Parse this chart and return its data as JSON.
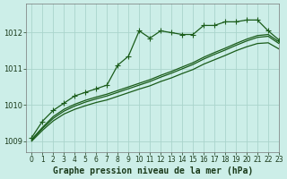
{
  "title": "Graphe pression niveau de la mer (hPa)",
  "bg_color": "#cceee8",
  "grid_color": "#aad4cc",
  "line_color": "#1a5c1a",
  "xlim": [
    -0.5,
    23
  ],
  "ylim": [
    1008.7,
    1012.8
  ],
  "yticks": [
    1009,
    1010,
    1011,
    1012
  ],
  "xticks": [
    0,
    1,
    2,
    3,
    4,
    5,
    6,
    7,
    8,
    9,
    10,
    11,
    12,
    13,
    14,
    15,
    16,
    17,
    18,
    19,
    20,
    21,
    22,
    23
  ],
  "series": [
    {
      "x": [
        0,
        1,
        2,
        3,
        4,
        5,
        6,
        7,
        8,
        9,
        10,
        11,
        12,
        13,
        14,
        15,
        16,
        17,
        18,
        19,
        20,
        21,
        22,
        23
      ],
      "y": [
        1009.1,
        1009.55,
        1009.85,
        1010.05,
        1010.25,
        1010.35,
        1010.45,
        1010.55,
        1011.1,
        1011.35,
        1012.05,
        1011.85,
        1012.05,
        1012.0,
        1011.95,
        1011.95,
        1012.2,
        1012.2,
        1012.3,
        1012.3,
        1012.35,
        1012.35,
        1012.05,
        1011.8
      ],
      "marker": "+",
      "ms": 4,
      "lw": 0.9
    },
    {
      "x": [
        0,
        1,
        2,
        3,
        4,
        5,
        6,
        7,
        8,
        9,
        10,
        11,
        12,
        13,
        14,
        15,
        16,
        17,
        18,
        19,
        20,
        21,
        22,
        23
      ],
      "y": [
        1009.05,
        1009.38,
        1009.68,
        1009.88,
        1010.02,
        1010.13,
        1010.22,
        1010.3,
        1010.4,
        1010.5,
        1010.6,
        1010.7,
        1010.82,
        1010.93,
        1011.05,
        1011.17,
        1011.32,
        1011.45,
        1011.57,
        1011.7,
        1011.82,
        1011.92,
        1011.95,
        1011.75
      ],
      "marker": null,
      "ms": 0,
      "lw": 0.9
    },
    {
      "x": [
        0,
        1,
        2,
        3,
        4,
        5,
        6,
        7,
        8,
        9,
        10,
        11,
        12,
        13,
        14,
        15,
        16,
        17,
        18,
        19,
        20,
        21,
        22,
        23
      ],
      "y": [
        1009.03,
        1009.35,
        1009.63,
        1009.83,
        1009.97,
        1010.08,
        1010.17,
        1010.25,
        1010.35,
        1010.45,
        1010.55,
        1010.65,
        1010.77,
        1010.88,
        1011.0,
        1011.12,
        1011.27,
        1011.4,
        1011.52,
        1011.65,
        1011.77,
        1011.87,
        1011.9,
        1011.7
      ],
      "marker": null,
      "ms": 0,
      "lw": 0.9
    },
    {
      "x": [
        0,
        1,
        2,
        3,
        4,
        5,
        6,
        7,
        8,
        9,
        10,
        11,
        12,
        13,
        14,
        15,
        16,
        17,
        18,
        19,
        20,
        21,
        22,
        23
      ],
      "y": [
        1009.0,
        1009.3,
        1009.56,
        1009.75,
        1009.88,
        1009.98,
        1010.07,
        1010.14,
        1010.24,
        1010.34,
        1010.44,
        1010.53,
        1010.65,
        1010.75,
        1010.87,
        1010.98,
        1011.13,
        1011.25,
        1011.37,
        1011.5,
        1011.61,
        1011.7,
        1011.72,
        1011.55
      ],
      "marker": null,
      "ms": 0,
      "lw": 0.9
    }
  ],
  "figsize": [
    3.2,
    2.0
  ],
  "dpi": 100
}
